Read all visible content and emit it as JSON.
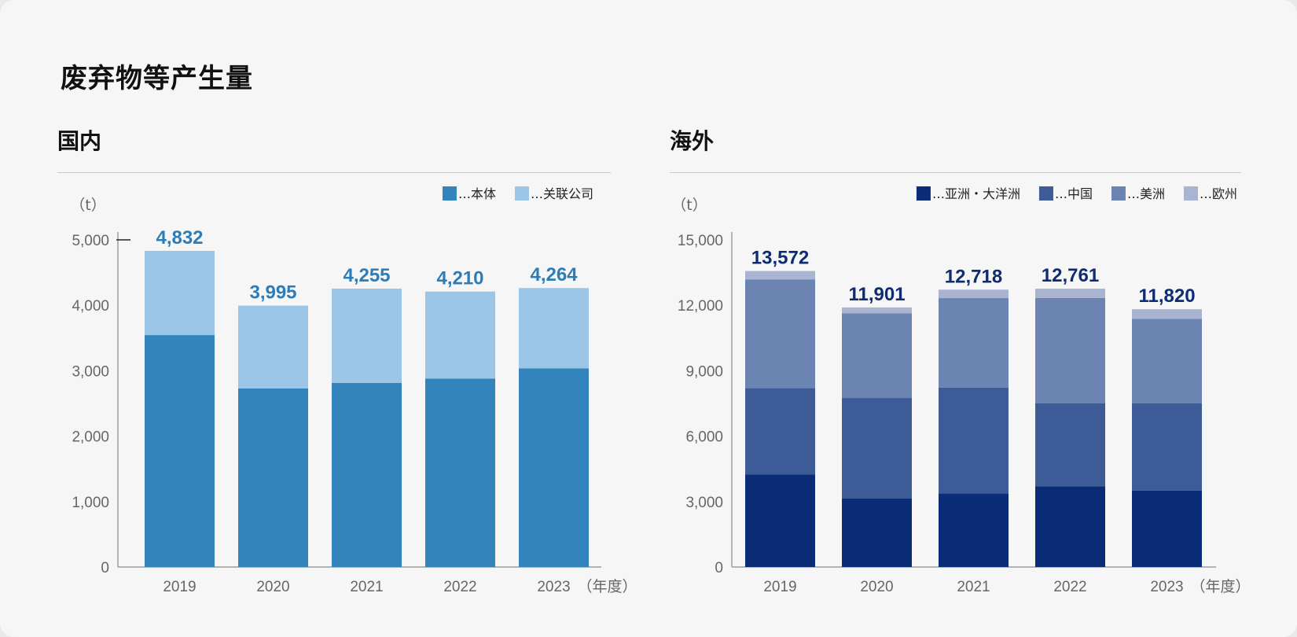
{
  "page": {
    "title": "废弃物等产生量"
  },
  "chart_data": [
    {
      "type": "bar",
      "stacked": true,
      "title": "国内",
      "unit_label": "（t）",
      "x_unit_label": "（年度）",
      "categories": [
        "2019",
        "2020",
        "2021",
        "2022",
        "2023"
      ],
      "series": [
        {
          "name": "本体",
          "values": [
            3545,
            2730,
            2815,
            2880,
            3035
          ],
          "color": "#3384bd"
        },
        {
          "name": "关联公司",
          "values": [
            1287,
            1265,
            1440,
            1330,
            1229
          ],
          "color": "#9cc6e7"
        }
      ],
      "totals": [
        "4,832",
        "3,995",
        "4,255",
        "4,210",
        "4,264"
      ],
      "ylim": [
        0,
        5000
      ],
      "yticks": [
        "0",
        "1,000",
        "2,000",
        "3,000",
        "4,000",
        "5,000"
      ],
      "legend_prefix": "…",
      "legend_position": "top-right",
      "grid": false
    },
    {
      "type": "bar",
      "stacked": true,
      "title": "海外",
      "unit_label": "（t）",
      "x_unit_label": "（年度）",
      "categories": [
        "2019",
        "2020",
        "2021",
        "2022",
        "2023"
      ],
      "series": [
        {
          "name": "亚洲・大洋洲",
          "values": [
            4250,
            3150,
            3380,
            3700,
            3500
          ],
          "color": "#0b2d78"
        },
        {
          "name": "中国",
          "values": [
            3950,
            4600,
            4850,
            3800,
            4000
          ],
          "color": "#3c5b97"
        },
        {
          "name": "美洲",
          "values": [
            4980,
            3880,
            4100,
            4840,
            3880
          ],
          "color": "#6c84b1"
        },
        {
          "name": "欧州",
          "values": [
            392,
            271,
            388,
            421,
            440
          ],
          "color": "#a9b4d2"
        }
      ],
      "totals": [
        "13,572",
        "11,901",
        "12,718",
        "12,761",
        "11,820"
      ],
      "ylim": [
        0,
        15000
      ],
      "yticks": [
        "0",
        "3,000",
        "6,000",
        "9,000",
        "12,000",
        "15,000"
      ],
      "legend_prefix": "…",
      "legend_position": "top-right",
      "grid": false
    }
  ]
}
